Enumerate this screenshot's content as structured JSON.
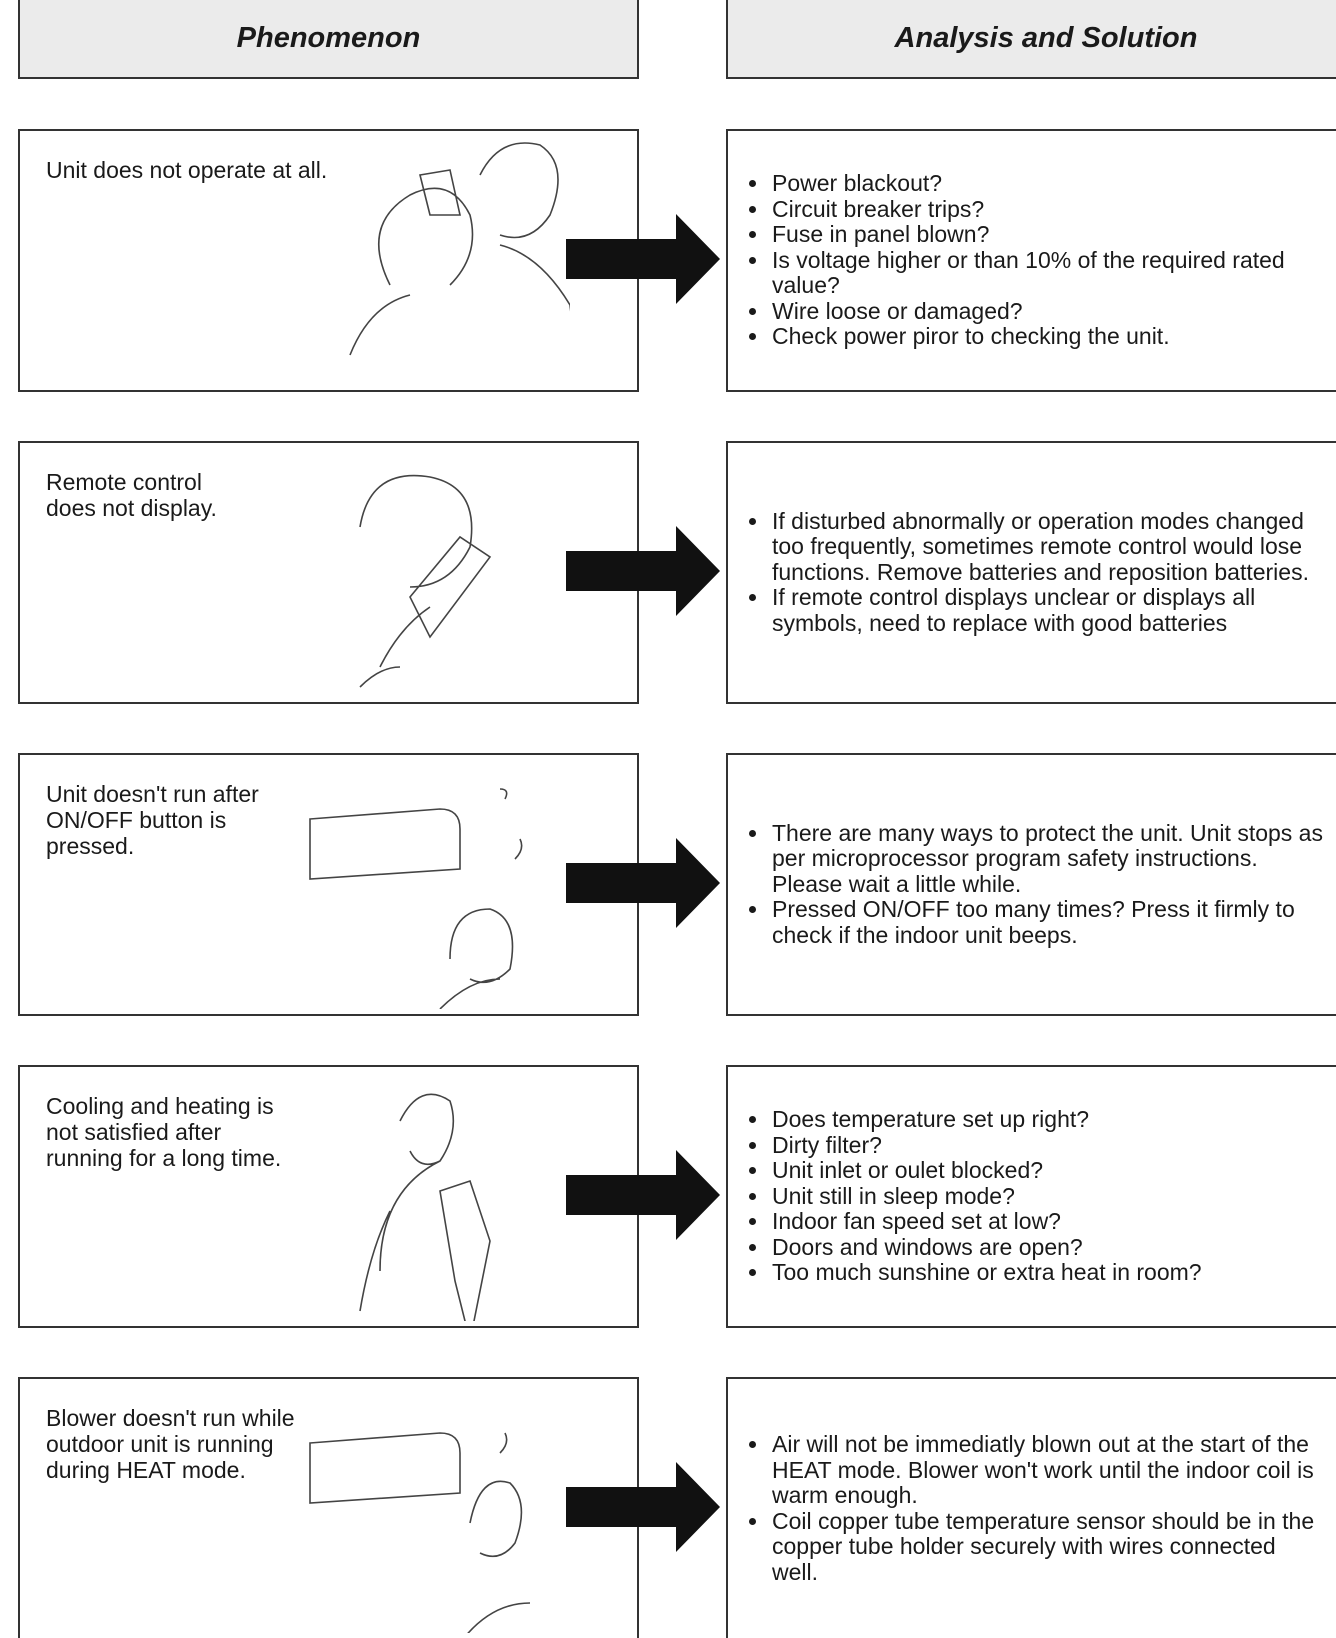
{
  "header": {
    "phenomenon": "Phenomenon",
    "analysis": "Analysis and Solution"
  },
  "rows": [
    {
      "phenomenon": [
        "Unit does not operate at all."
      ],
      "solutions": [
        "Power blackout?",
        "Circuit breaker trips?",
        "Fuse in panel blown?",
        "Is voltage higher or than 10% of the required rated value?",
        "Wire loose or damaged?",
        "Check power piror to checking the unit."
      ]
    },
    {
      "phenomenon": [
        "Remote control",
        "does not display."
      ],
      "solutions": [
        "If disturbed abnormally or operation modes changed too frequently, sometimes remote control would lose functions. Remove batteries and reposition batteries.",
        "If remote control displays unclear or displays all symbols, need to replace with good batteries"
      ]
    },
    {
      "phenomenon": [
        "Unit doesn't run after",
        "ON/OFF button is",
        "pressed."
      ],
      "solutions": [
        "There are many ways to protect the unit. Unit stops as per microprocessor program safety instructions. Please wait a little while.",
        "Pressed ON/OFF too many times? Press it firmly to check if the indoor unit beeps."
      ]
    },
    {
      "phenomenon": [
        "Cooling and heating is",
        "not satisfied after",
        "running for a long time."
      ],
      "solutions": [
        "Does temperature set up right?",
        "Dirty filter?",
        "Unit inlet or oulet blocked?",
        "Unit still in sleep mode?",
        "Indoor fan speed set at low?",
        "Doors and windows are open?",
        "Too much sunshine or extra heat in room?"
      ]
    },
    {
      "phenomenon": [
        "Blower doesn't run while",
        "outdoor unit is running",
        "during HEAT mode."
      ],
      "solutions": [
        "Air will not be immediatly blown out at the start of the HEAT mode. Blower won't work until the indoor coil is warm enough.",
        "Coil copper tube temperature sensor should be in the copper tube holder securely with wires connected well."
      ]
    }
  ]
}
